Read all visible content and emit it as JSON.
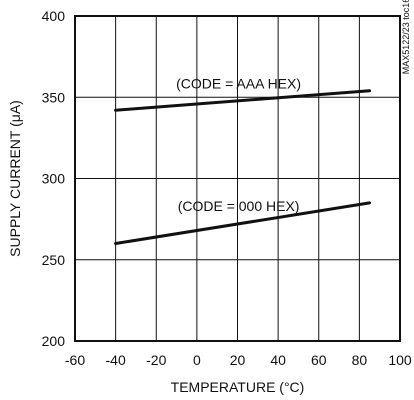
{
  "chart_data": {
    "type": "line",
    "title": "",
    "xlabel": "TEMPERATURE (°C)",
    "ylabel": "SUPPLY CURRENT (μA)",
    "xlim": [
      -60,
      100
    ],
    "ylim": [
      200,
      400
    ],
    "x_ticks": [
      "-60",
      "-40",
      "-20",
      "0",
      "20",
      "40",
      "60",
      "80",
      "100"
    ],
    "y_ticks": [
      "200",
      "250",
      "300",
      "350",
      "400"
    ],
    "grid": true,
    "side_code": "MAX5122/23 toc16",
    "series": [
      {
        "name": "(CODE = AAA HEX)",
        "x": [
          -40,
          85
        ],
        "y": [
          342,
          354
        ]
      },
      {
        "name": "(CODE = 000 HEX)",
        "x": [
          -40,
          85
        ],
        "y": [
          260,
          285
        ]
      }
    ]
  }
}
